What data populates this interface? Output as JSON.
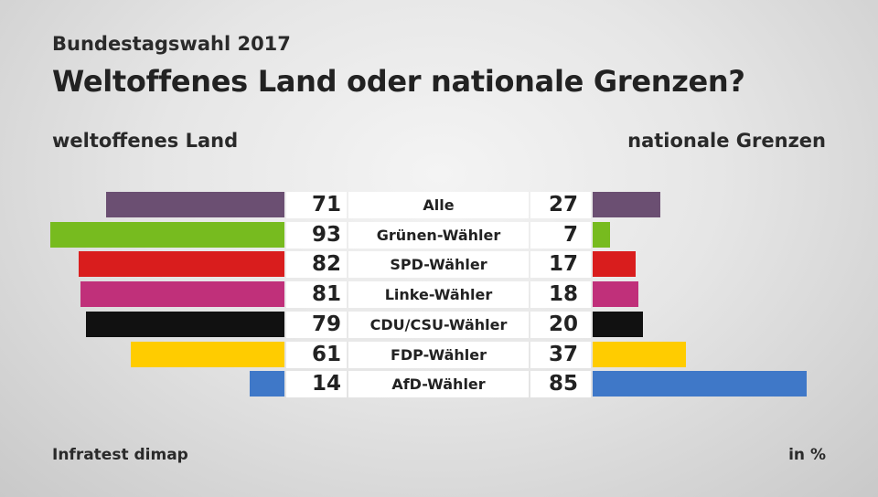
{
  "header": {
    "supertitle": "Bundestagswahl 2017",
    "title": "Weltoffenes Land oder nationale Grenzen?",
    "left_label": "weltoffenes Land",
    "right_label": "nationale Grenzen"
  },
  "footer": {
    "source": "Infratest dimap",
    "unit": "in %"
  },
  "chart_data": {
    "type": "bar",
    "orientation": "diverging-horizontal",
    "title": "Weltoffenes Land oder nationale Grenzen?",
    "categories": [
      "Alle",
      "Grünen-Wähler",
      "SPD-Wähler",
      "Linke-Wähler",
      "CDU/CSU-Wähler",
      "FDP-Wähler",
      "AfD-Wähler"
    ],
    "series": [
      {
        "name": "weltoffenes Land",
        "side": "left",
        "values": [
          71,
          93,
          82,
          81,
          79,
          61,
          14
        ]
      },
      {
        "name": "nationale Grenzen",
        "side": "right",
        "values": [
          27,
          7,
          17,
          18,
          20,
          37,
          85
        ]
      }
    ],
    "colors": [
      "#6b4f72",
      "#77bb1f",
      "#d91d1d",
      "#c0307a",
      "#111111",
      "#ffcc00",
      "#3f78c8"
    ],
    "unit": "%"
  }
}
